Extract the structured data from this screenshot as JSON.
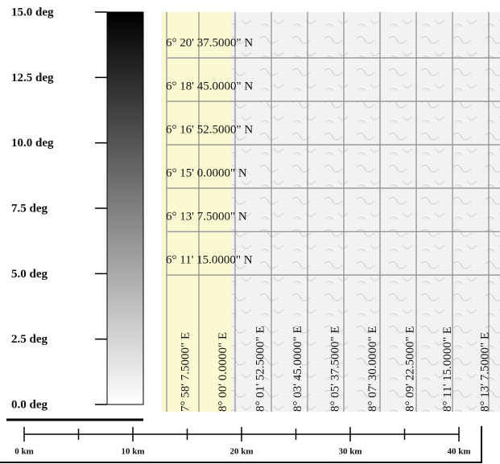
{
  "colorbar": {
    "lim": [
      0,
      15
    ],
    "ticks": [
      {
        "value": 0,
        "label": "0.0 deg"
      },
      {
        "value": 2.5,
        "label": "2.5 deg"
      },
      {
        "value": 5,
        "label": "5.0 deg"
      },
      {
        "value": 7.5,
        "label": "7.5 deg"
      },
      {
        "value": 10,
        "label": "10.0 deg"
      },
      {
        "value": 12.5,
        "label": "12.5 deg"
      },
      {
        "value": 15,
        "label": "15.0 deg"
      }
    ]
  },
  "grid": {
    "lat_labels": [
      "6° 20' 37.5000\" N",
      "6° 18' 45.0000\" N",
      "6° 16' 52.5000\" N",
      "6° 15' 0.0000\" N",
      "6° 13' 7.5000\" N",
      "6° 11' 15.0000\" N"
    ],
    "lon_labels": [
      "7° 58' 7.5000\" E",
      "8° 00' 0.0000\" E",
      "8° 01' 52.5000\" E",
      "8° 03' 45.0000\" E",
      "8° 05' 37.5000\" E",
      "8° 07' 30.0000\" E",
      "8° 09' 22.5000\" E",
      "8° 11' 15.0000\" E",
      "8° 13' 7.5000\" E"
    ]
  },
  "scale_bar": {
    "ticks": [
      {
        "value": 0,
        "label": "0 km"
      },
      {
        "value": 10,
        "label": "10 km"
      },
      {
        "value": 20,
        "label": "20 km"
      },
      {
        "value": 30,
        "label": "30 km"
      },
      {
        "value": 40,
        "label": "40 km"
      }
    ]
  }
}
